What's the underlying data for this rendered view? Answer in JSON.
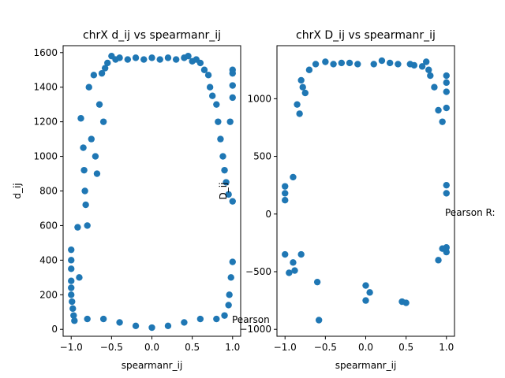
{
  "chart_data": [
    {
      "type": "scatter",
      "title": "chrX d_ij vs spearmanr_ij",
      "xlabel": "spearmanr_ij",
      "ylabel": "d_ij",
      "xlim": [
        -1.1,
        1.1
      ],
      "ylim": [
        -40,
        1640
      ],
      "xticks": [
        -1.0,
        -0.5,
        0.0,
        0.5,
        1.0
      ],
      "xtick_labels": [
        "−1.0",
        "−0.5",
        "0.0",
        "0.5",
        "1.0"
      ],
      "yticks": [
        0,
        200,
        400,
        600,
        800,
        1000,
        1200,
        1400,
        1600
      ],
      "ytick_labels": [
        "0",
        "200",
        "400",
        "600",
        "800",
        "1000",
        "1200",
        "1400",
        "1600"
      ],
      "grid": false,
      "color": "#1f77b4",
      "annotation": "Pearson",
      "points": [
        [
          -1.0,
          460
        ],
        [
          -1.0,
          400
        ],
        [
          -1.0,
          350
        ],
        [
          -1.0,
          280
        ],
        [
          -1.0,
          240
        ],
        [
          -1.0,
          200
        ],
        [
          -0.99,
          160
        ],
        [
          -0.98,
          120
        ],
        [
          -0.97,
          80
        ],
        [
          -0.96,
          50
        ],
        [
          -0.92,
          590
        ],
        [
          -0.9,
          300
        ],
        [
          -0.88,
          1220
        ],
        [
          -0.85,
          1050
        ],
        [
          -0.84,
          920
        ],
        [
          -0.83,
          800
        ],
        [
          -0.82,
          720
        ],
        [
          -0.8,
          600
        ],
        [
          -0.78,
          1400
        ],
        [
          -0.75,
          1100
        ],
        [
          -0.72,
          1470
        ],
        [
          -0.7,
          1000
        ],
        [
          -0.68,
          900
        ],
        [
          -0.65,
          1300
        ],
        [
          -0.62,
          1480
        ],
        [
          -0.6,
          1200
        ],
        [
          -0.58,
          1510
        ],
        [
          -0.55,
          1540
        ],
        [
          -0.5,
          1580
        ],
        [
          -0.45,
          1560
        ],
        [
          -0.4,
          1570
        ],
        [
          -0.3,
          1560
        ],
        [
          -0.2,
          1570
        ],
        [
          -0.1,
          1560
        ],
        [
          0.0,
          1570
        ],
        [
          0.1,
          1560
        ],
        [
          0.2,
          1570
        ],
        [
          0.3,
          1560
        ],
        [
          0.4,
          1570
        ],
        [
          0.45,
          1580
        ],
        [
          0.5,
          1550
        ],
        [
          0.55,
          1560
        ],
        [
          0.6,
          1540
        ],
        [
          0.65,
          1500
        ],
        [
          0.7,
          1470
        ],
        [
          0.72,
          1400
        ],
        [
          0.75,
          1350
        ],
        [
          0.8,
          1300
        ],
        [
          0.82,
          1200
        ],
        [
          0.85,
          1100
        ],
        [
          0.88,
          1000
        ],
        [
          0.9,
          920
        ],
        [
          0.92,
          850
        ],
        [
          0.95,
          780
        ],
        [
          0.97,
          1200
        ],
        [
          1.0,
          1500
        ],
        [
          1.0,
          1480
        ],
        [
          1.0,
          1410
        ],
        [
          1.0,
          1340
        ],
        [
          1.0,
          740
        ],
        [
          1.0,
          390
        ],
        [
          0.98,
          300
        ],
        [
          0.96,
          200
        ],
        [
          0.95,
          140
        ],
        [
          0.9,
          80
        ],
        [
          -0.4,
          40
        ],
        [
          -0.2,
          20
        ],
        [
          0.0,
          10
        ],
        [
          0.2,
          20
        ],
        [
          0.4,
          40
        ],
        [
          0.6,
          60
        ],
        [
          0.8,
          60
        ],
        [
          -0.6,
          60
        ],
        [
          -0.8,
          60
        ]
      ]
    },
    {
      "type": "scatter",
      "title": "chrX D_ij vs spearmanr_ij",
      "xlabel": "spearmanr_ij",
      "ylabel": "D_ij",
      "xlim": [
        -1.1,
        1.1
      ],
      "ylim": [
        -1060,
        1460
      ],
      "xticks": [
        -1.0,
        -0.5,
        0.0,
        0.5,
        1.0
      ],
      "xtick_labels": [
        "−1.0",
        "−0.5",
        "0.0",
        "0.5",
        "1.0"
      ],
      "yticks": [
        -1000,
        -500,
        0,
        500,
        1000
      ],
      "ytick_labels": [
        "−1000",
        "−500",
        "0",
        "500",
        "1000"
      ],
      "grid": false,
      "color": "#1f77b4",
      "annotation": "Pearson R:",
      "points": [
        [
          -1.0,
          240
        ],
        [
          -1.0,
          180
        ],
        [
          -1.0,
          120
        ],
        [
          -1.0,
          -350
        ],
        [
          -0.95,
          -510
        ],
        [
          -0.9,
          320
        ],
        [
          -0.88,
          -490
        ],
        [
          -0.85,
          950
        ],
        [
          -0.82,
          870
        ],
        [
          -0.8,
          1160
        ],
        [
          -0.78,
          1100
        ],
        [
          -0.75,
          1050
        ],
        [
          -0.7,
          1250
        ],
        [
          -0.62,
          1300
        ],
        [
          -0.6,
          -590
        ],
        [
          -0.58,
          -920
        ],
        [
          -0.5,
          1320
        ],
        [
          -0.4,
          1300
        ],
        [
          -0.3,
          1310
        ],
        [
          -0.2,
          1310
        ],
        [
          -0.1,
          1300
        ],
        [
          0.0,
          -620
        ],
        [
          0.0,
          -750
        ],
        [
          0.05,
          -680
        ],
        [
          0.1,
          1300
        ],
        [
          0.2,
          1330
        ],
        [
          0.3,
          1310
        ],
        [
          0.4,
          1300
        ],
        [
          0.45,
          -760
        ],
        [
          0.5,
          -770
        ],
        [
          0.55,
          1300
        ],
        [
          0.6,
          1290
        ],
        [
          0.7,
          1280
        ],
        [
          0.75,
          1320
        ],
        [
          0.78,
          1250
        ],
        [
          0.8,
          1200
        ],
        [
          0.85,
          1100
        ],
        [
          0.9,
          900
        ],
        [
          0.95,
          800
        ],
        [
          1.0,
          1200
        ],
        [
          1.0,
          1140
        ],
        [
          1.0,
          1060
        ],
        [
          1.0,
          920
        ],
        [
          1.0,
          250
        ],
        [
          1.0,
          180
        ],
        [
          1.0,
          -290
        ],
        [
          1.0,
          -330
        ],
        [
          0.95,
          -300
        ],
        [
          0.9,
          -400
        ],
        [
          -0.9,
          -420
        ],
        [
          -0.8,
          -350
        ]
      ]
    }
  ]
}
